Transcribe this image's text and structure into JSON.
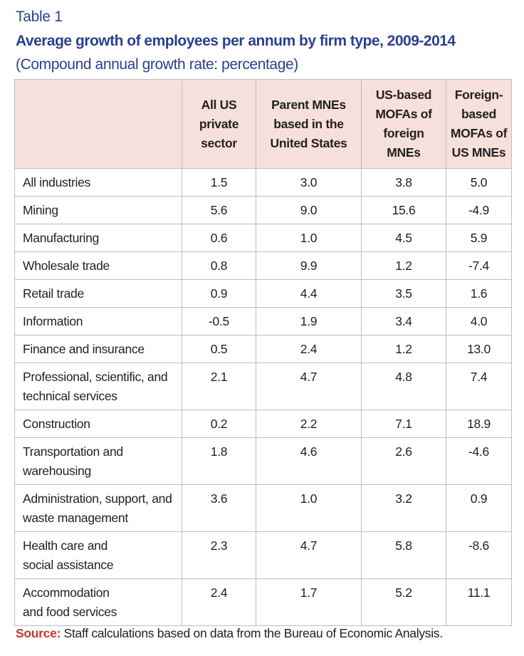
{
  "header": {
    "table_label": "Table 1",
    "title": "Average growth of employees per annum by firm type, 2009-2014",
    "subtitle": "(Compound annual growth rate: percentage)"
  },
  "colors": {
    "title": "#2b3f8f",
    "header_fill": "#f6e0dc",
    "source_label": "#c0392b",
    "rule": "#bdbdbd"
  },
  "columns": [
    {
      "lines": [
        ""
      ]
    },
    {
      "lines": [
        "All US",
        "private",
        "sector"
      ]
    },
    {
      "lines": [
        "Parent MNEs",
        "based in the",
        "United States"
      ]
    },
    {
      "lines": [
        "US-based",
        "MOFAs of",
        "foreign",
        "MNEs"
      ]
    },
    {
      "lines": [
        "Foreign-",
        "based",
        "MOFAs of",
        "US MNEs"
      ]
    }
  ],
  "rows": [
    {
      "label": [
        "All industries"
      ],
      "values": [
        "1.5",
        "3.0",
        "3.8",
        "5.0"
      ]
    },
    {
      "label": [
        "Mining"
      ],
      "values": [
        "5.6",
        "9.0",
        "15.6",
        "-4.9"
      ]
    },
    {
      "label": [
        "Manufacturing"
      ],
      "values": [
        "0.6",
        "1.0",
        "4.5",
        "5.9"
      ]
    },
    {
      "label": [
        "Wholesale trade"
      ],
      "values": [
        "0.8",
        "9.9",
        "1.2",
        "-7.4"
      ]
    },
    {
      "label": [
        "Retail trade"
      ],
      "values": [
        "0.9",
        "4.4",
        "3.5",
        "1.6"
      ]
    },
    {
      "label": [
        "Information"
      ],
      "values": [
        "-0.5",
        "1.9",
        "3.4",
        "4.0"
      ]
    },
    {
      "label": [
        "Finance and insurance"
      ],
      "values": [
        "0.5",
        "2.4",
        "1.2",
        "13.0"
      ]
    },
    {
      "label": [
        "Professional, scientific, and",
        "technical services"
      ],
      "values": [
        "2.1",
        "4.7",
        "4.8",
        "7.4"
      ]
    },
    {
      "label": [
        "Construction"
      ],
      "values": [
        "0.2",
        "2.2",
        "7.1",
        "18.9"
      ]
    },
    {
      "label": [
        "Transportation and",
        "warehousing"
      ],
      "values": [
        "1.8",
        "4.6",
        "2.6",
        "-4.6"
      ]
    },
    {
      "label": [
        "Administration, support, and",
        "waste management"
      ],
      "values": [
        "3.6",
        "1.0",
        "3.2",
        "0.9"
      ]
    },
    {
      "label": [
        "Health care and",
        "social assistance"
      ],
      "values": [
        "2.3",
        "4.7",
        "5.8",
        "-8.6"
      ]
    },
    {
      "label": [
        "Accommodation",
        "and food services"
      ],
      "values": [
        "2.4",
        "1.7",
        "5.2",
        "11.1"
      ]
    }
  ],
  "source": {
    "label": "Source:",
    "text": " Staff calculations based on data from the Bureau of Economic Analysis."
  }
}
